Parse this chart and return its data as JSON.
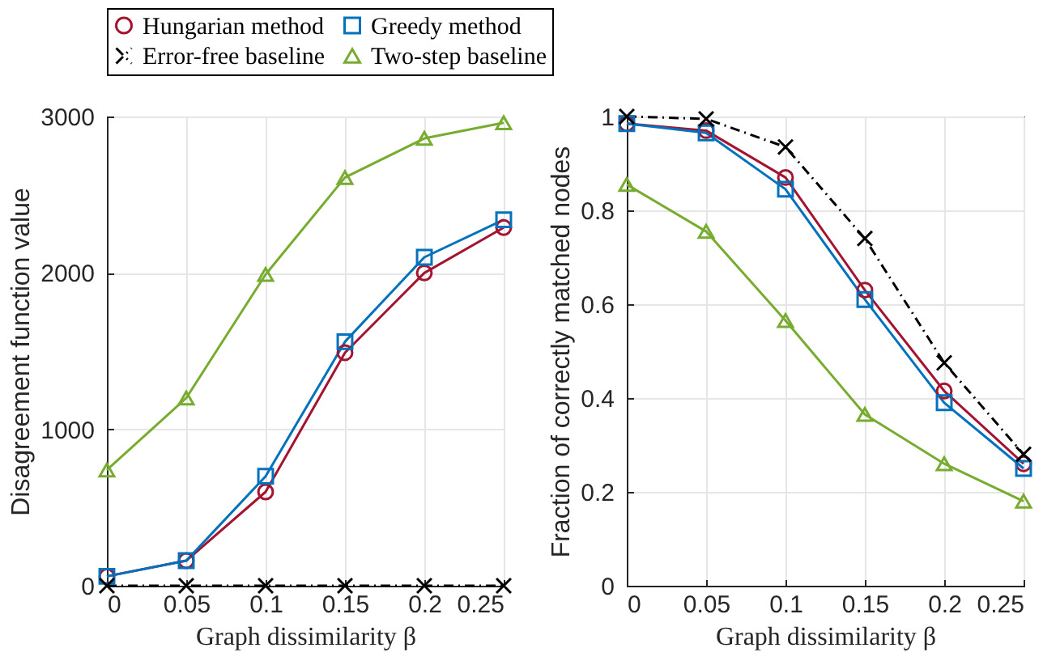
{
  "chart_data": [
    {
      "type": "line",
      "xlabel": "Graph dissimilarity β",
      "ylabel": "Disagreement function value",
      "x": [
        0,
        0.05,
        0.1,
        0.15,
        0.2,
        0.25
      ],
      "xlim": [
        0,
        0.25
      ],
      "xticks": [
        0,
        0.05,
        0.1,
        0.15,
        0.2,
        0.25
      ],
      "ylim": [
        0,
        3000
      ],
      "yticks": [
        0,
        1000,
        2000,
        3000
      ],
      "grid": true,
      "legend": "top",
      "series": [
        {
          "name": "Hungarian method",
          "color": "#a2142f",
          "marker": "circle",
          "line_style": "solid",
          "values": [
            60,
            160,
            600,
            1490,
            2000,
            2290
          ]
        },
        {
          "name": "Greedy method",
          "color": "#0072bd",
          "marker": "square",
          "line_style": "solid",
          "values": [
            60,
            160,
            700,
            1560,
            2100,
            2340
          ]
        },
        {
          "name": "Error-free baseline",
          "color": "#000000",
          "marker": "cross",
          "line_style": "dashed",
          "values": [
            0,
            0,
            0,
            0,
            0,
            0
          ]
        },
        {
          "name": "Two-step baseline",
          "color": "#77ac30",
          "marker": "triangle",
          "line_style": "solid",
          "values": [
            740,
            1200,
            1990,
            2610,
            2860,
            2960
          ]
        }
      ]
    },
    {
      "type": "line",
      "xlabel": "Graph dissimilarity β",
      "ylabel": "Fraction of correctly matched nodes",
      "x": [
        0,
        0.05,
        0.1,
        0.15,
        0.2,
        0.25
      ],
      "xlim": [
        0,
        0.25
      ],
      "xticks": [
        0,
        0.05,
        0.1,
        0.15,
        0.2,
        0.25
      ],
      "ylim": [
        0,
        1
      ],
      "yticks": [
        0,
        0.2,
        0.4,
        0.6,
        0.8,
        1
      ],
      "grid": true,
      "legend": "top",
      "series": [
        {
          "name": "Hungarian method",
          "color": "#a2142f",
          "marker": "circle",
          "line_style": "solid",
          "values": [
            0.985,
            0.97,
            0.87,
            0.63,
            0.415,
            0.26
          ]
        },
        {
          "name": "Greedy method",
          "color": "#0072bd",
          "marker": "square",
          "line_style": "solid",
          "values": [
            0.985,
            0.965,
            0.845,
            0.61,
            0.39,
            0.25
          ]
        },
        {
          "name": "Error-free baseline",
          "color": "#000000",
          "marker": "cross",
          "line_style": "dashed",
          "values": [
            1,
            0.995,
            0.935,
            0.74,
            0.475,
            0.28
          ]
        },
        {
          "name": "Two-step baseline",
          "color": "#77ac30",
          "marker": "triangle",
          "line_style": "solid",
          "values": [
            0.855,
            0.755,
            0.565,
            0.365,
            0.26,
            0.18
          ]
        }
      ]
    }
  ]
}
